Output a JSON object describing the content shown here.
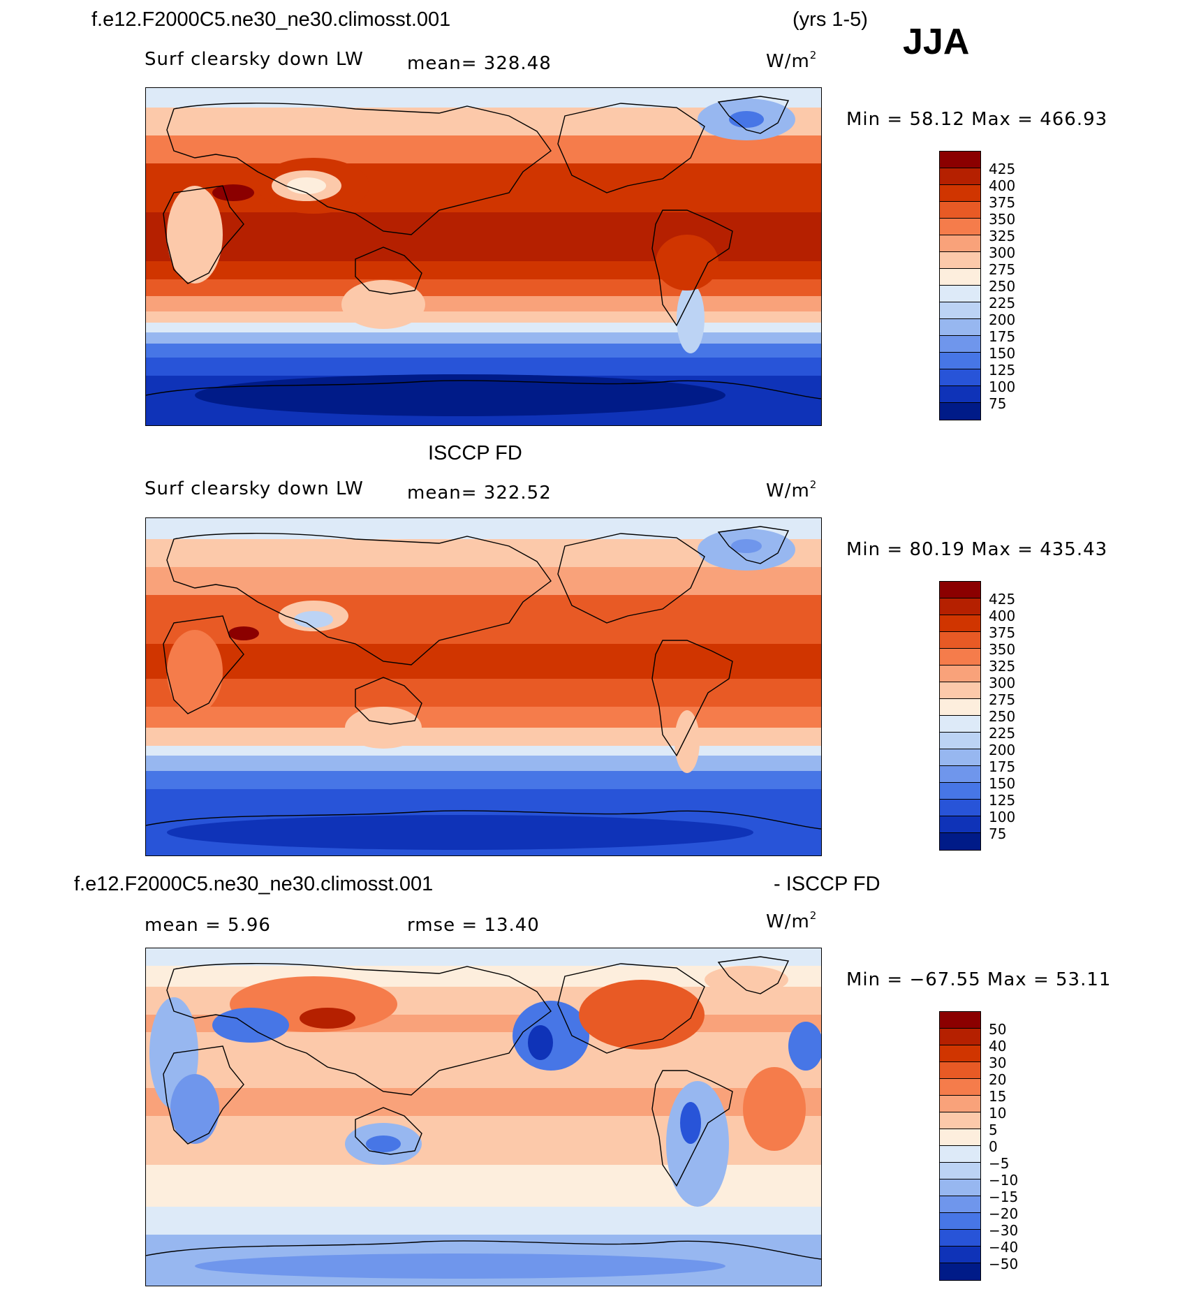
{
  "header": {
    "case_name": "f.e12.F2000C5.ne30_ne30.climosst.001",
    "years": "(yrs 1-5)",
    "season": "JJA"
  },
  "panels": [
    {
      "title": "",
      "variable": "Surf clearsky down LW",
      "mean_text": "mean=  328.48",
      "units": "W/m",
      "units_sup": "2",
      "minmax": "Min =   58.12 Max = 466.93"
    },
    {
      "title": "ISCCP FD",
      "variable": "Surf clearsky down LW",
      "mean_text": "mean=  322.52",
      "units": "W/m",
      "units_sup": "2",
      "minmax": "Min =   80.19 Max = 435.43"
    },
    {
      "title_left": "f.e12.F2000C5.ne30_ne30.climosst.001",
      "title_right": "- ISCCP FD",
      "mean_text": "mean =    5.96",
      "rmse_text": "rmse =   13.40",
      "units": "W/m",
      "units_sup": "2",
      "minmax": "Min = −67.55 Max =   53.11"
    }
  ],
  "colorbars": {
    "abs_labels": [
      "425",
      "400",
      "375",
      "350",
      "325",
      "300",
      "275",
      "250",
      "225",
      "200",
      "175",
      "150",
      "125",
      "100",
      "75"
    ],
    "abs_colors": [
      "#8b0000",
      "#b52000",
      "#d03500",
      "#e85a25",
      "#f57c4b",
      "#f9a27a",
      "#fcc9aa",
      "#fdeedd",
      "#ddeaf8",
      "#bcd3f4",
      "#97b7f0",
      "#6f96ec",
      "#4776e6",
      "#2854d8",
      "#0f33b8",
      "#001b88"
    ],
    "diff_labels": [
      "50",
      "40",
      "30",
      "20",
      "15",
      "10",
      "5",
      "0",
      "−5",
      "−10",
      "−15",
      "−20",
      "−30",
      "−40",
      "−50"
    ],
    "diff_colors": [
      "#8b0000",
      "#b52000",
      "#d03500",
      "#e85a25",
      "#f57c4b",
      "#f9a27a",
      "#fcc9aa",
      "#fdeedd",
      "#ddeaf8",
      "#bcd3f4",
      "#97b7f0",
      "#6f96ec",
      "#4776e6",
      "#2854d8",
      "#0f33b8",
      "#001b88"
    ]
  }
}
